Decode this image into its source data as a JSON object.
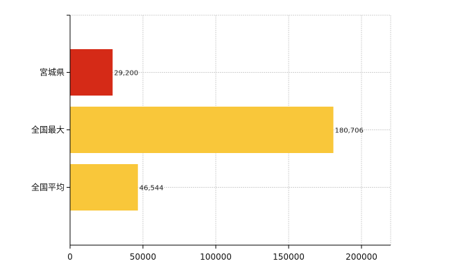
{
  "chart_data": {
    "type": "bar",
    "orientation": "horizontal",
    "categories": [
      "宮城県",
      "全国最大",
      "全国平均"
    ],
    "values": [
      29200,
      180706,
      46544
    ],
    "value_labels": [
      "29,200",
      "180,706",
      "46,544"
    ],
    "bar_colors": [
      "#d52a17",
      "#f9c73a",
      "#f9c73a"
    ],
    "xlim": [
      0,
      220000
    ],
    "x_ticks": [
      0,
      50000,
      100000,
      150000,
      200000
    ],
    "x_tick_labels": [
      "0",
      "50000",
      "100000",
      "150000",
      "200000"
    ],
    "grid": true,
    "legend": "none",
    "title": "",
    "xlabel": "",
    "ylabel": ""
  }
}
